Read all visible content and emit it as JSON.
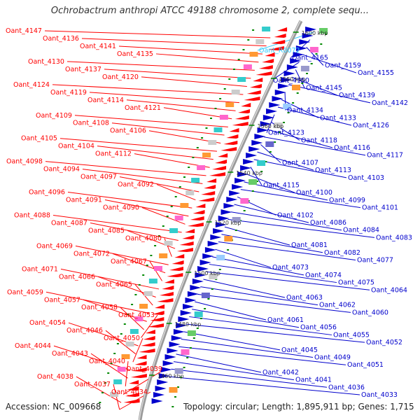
{
  "title": "Ochrobactrum anthropi ATCC 49188 chromosome 2, complete sequ...",
  "accession": "Accession: NC_009668",
  "topology": "Topology: circular; Length: 1,895,911 bp; Genes: 1,715",
  "colors": {
    "forward": "#ff0000",
    "reverse": "#0000cc",
    "rna": "#33ccff",
    "backbone": "#888888",
    "tick": "#008800"
  },
  "scale_labels": [
    "1600 kbp",
    "1580 kbp",
    "1560 kbp",
    "1540 kbp",
    "1520 kbp",
    "1500 kbp",
    "1480 kbp",
    "1460 kbp"
  ],
  "left_labels": [
    "Oant_4147",
    "Oant_4136",
    "Oant_4141",
    "Oant_4135",
    "Oant_4130",
    "Oant_4137",
    "Oant_4120",
    "Oant_4124",
    "Oant_4119",
    "Oant_4114",
    "Oant_4121",
    "Oant_4109",
    "Oant_4108",
    "Oant_4106",
    "Oant_4105",
    "Oant_4104",
    "Oant_4112",
    "Oant_4098",
    "Oant_4094",
    "Oant_4097",
    "Oant_4092",
    "Oant_4096",
    "Oant_4091",
    "Oant_4090",
    "Oant_4088",
    "Oant_4087",
    "Oant_4085",
    "Oant_4080",
    "Oant_4069",
    "Oant_4072",
    "Oant_4067",
    "Oant_4071",
    "Oant_4066",
    "Oant_4065",
    "Oant_4059",
    "Oant_4057",
    "Oant_4058",
    "Oant_4053",
    "Oant_4054",
    "Oant_4046",
    "Oant_4050",
    "Oant_4044",
    "Oant_4043",
    "Oant_4040",
    "Oant_4039",
    "Oant_4038",
    "Oant_4037",
    "Oant_4034"
  ],
  "right_labels": [
    "Oant_R0072",
    "Oant_4165",
    "Oant_4159",
    "Oant_4155",
    "Oant_4150",
    "Oant_4145",
    "Oant_4139",
    "Oant_4142",
    "Oant_4134",
    "Oant_4133",
    "Oant_4126",
    "Oant_4123",
    "Oant_4118",
    "Oant_4116",
    "Oant_4117",
    "Oant_4107",
    "Oant_4113",
    "Oant_4103",
    "Oant_4115",
    "Oant_4100",
    "Oant_4099",
    "Oant_4101",
    "Oant_4102",
    "Oant_4086",
    "Oant_4084",
    "Oant_4083",
    "Oant_4081",
    "Oant_4082",
    "Oant_4077",
    "Oant_4073",
    "Oant_4074",
    "Oant_4075",
    "Oant_4064",
    "Oant_4063",
    "Oant_4062",
    "Oant_4060",
    "Oant_4061",
    "Oant_4056",
    "Oant_4055",
    "Oant_4052",
    "Oant_4045",
    "Oant_4049",
    "Oant_4051",
    "Oant_4042",
    "Oant_4041",
    "Oant_4036",
    "Oant_4033"
  ]
}
